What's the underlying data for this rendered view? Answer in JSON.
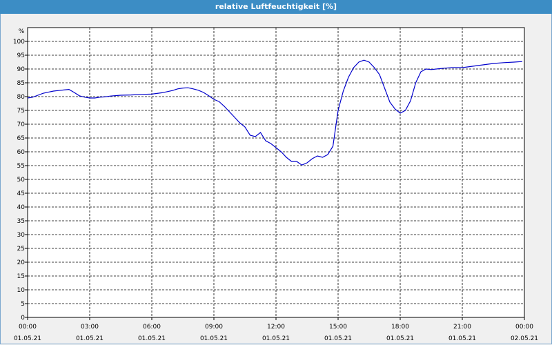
{
  "window": {
    "title": "relative Luftfeuchtigkeit [%]"
  },
  "chart_data": {
    "type": "line",
    "title": "relative Luftfeuchtigkeit [%]",
    "yunit": "%",
    "ylim": [
      0,
      100
    ],
    "yticks": [
      0,
      5,
      10,
      15,
      20,
      25,
      30,
      35,
      40,
      45,
      50,
      55,
      60,
      65,
      70,
      75,
      80,
      85,
      90,
      95,
      100
    ],
    "xlim_hours": [
      0,
      24
    ],
    "xticks": [
      {
        "time": "00:00",
        "date": "01.05.21",
        "hour": 0
      },
      {
        "time": "03:00",
        "date": "01.05.21",
        "hour": 3
      },
      {
        "time": "06:00",
        "date": "01.05.21",
        "hour": 6
      },
      {
        "time": "09:00",
        "date": "01.05.21",
        "hour": 9
      },
      {
        "time": "12:00",
        "date": "01.05.21",
        "hour": 12
      },
      {
        "time": "15:00",
        "date": "01.05.21",
        "hour": 15
      },
      {
        "time": "18:00",
        "date": "01.05.21",
        "hour": 18
      },
      {
        "time": "21:00",
        "date": "01.05.21",
        "hour": 21
      },
      {
        "time": "00:00",
        "date": "02.05.21",
        "hour": 24
      }
    ],
    "grid": true,
    "line_color": "#0000cc",
    "series": [
      {
        "x": [
          0,
          0.25,
          0.5,
          0.75,
          1.0,
          1.25,
          1.5,
          1.75,
          2.0,
          2.25,
          2.5,
          2.75,
          3.0,
          3.25,
          3.5,
          3.75,
          4.0,
          4.5,
          5.0,
          5.5,
          6.0,
          6.5,
          7.0,
          7.25,
          7.5,
          7.75,
          8.0,
          8.25,
          8.5,
          8.75,
          9.0,
          9.25,
          9.5,
          9.75,
          10.0,
          10.25,
          10.5,
          10.75,
          11.0,
          11.25,
          11.5,
          11.75,
          12.0,
          12.25,
          12.5,
          12.75,
          13.0,
          13.25,
          13.5,
          13.75,
          14.0,
          14.25,
          14.5,
          14.75,
          15.0,
          15.25,
          15.5,
          15.75,
          16.0,
          16.25,
          16.5,
          16.75,
          17.0,
          17.25,
          17.5,
          17.75,
          18.0,
          18.25,
          18.5,
          18.75,
          19.0,
          19.25,
          19.5,
          20.0,
          20.5,
          21.0,
          21.5,
          22.0,
          22.5,
          23.0,
          23.5,
          23.9
        ],
        "y": [
          79.5,
          79.8,
          80.5,
          81.2,
          81.6,
          82.0,
          82.2,
          82.4,
          82.6,
          81.5,
          80.3,
          79.8,
          79.5,
          79.5,
          79.8,
          79.9,
          80.2,
          80.5,
          80.6,
          80.8,
          80.9,
          81.4,
          82.2,
          82.8,
          83.1,
          83.2,
          82.8,
          82.3,
          81.5,
          80.3,
          79.0,
          78.2,
          76.5,
          74.5,
          72.5,
          70.5,
          69.0,
          66.0,
          65.5,
          67.0,
          64.0,
          63.0,
          61.5,
          60.0,
          58.0,
          56.5,
          56.5,
          55.2,
          56.0,
          57.5,
          58.5,
          58.0,
          59.0,
          62.0,
          75.0,
          82.0,
          87.0,
          90.5,
          92.5,
          93.2,
          92.5,
          90.5,
          88.0,
          83.0,
          78.0,
          75.5,
          74.0,
          75.0,
          78.5,
          85.0,
          89.0,
          90.0,
          89.8,
          90.2,
          90.5,
          90.5,
          91.0,
          91.5,
          92.0,
          92.3,
          92.5,
          92.7
        ]
      }
    ]
  }
}
